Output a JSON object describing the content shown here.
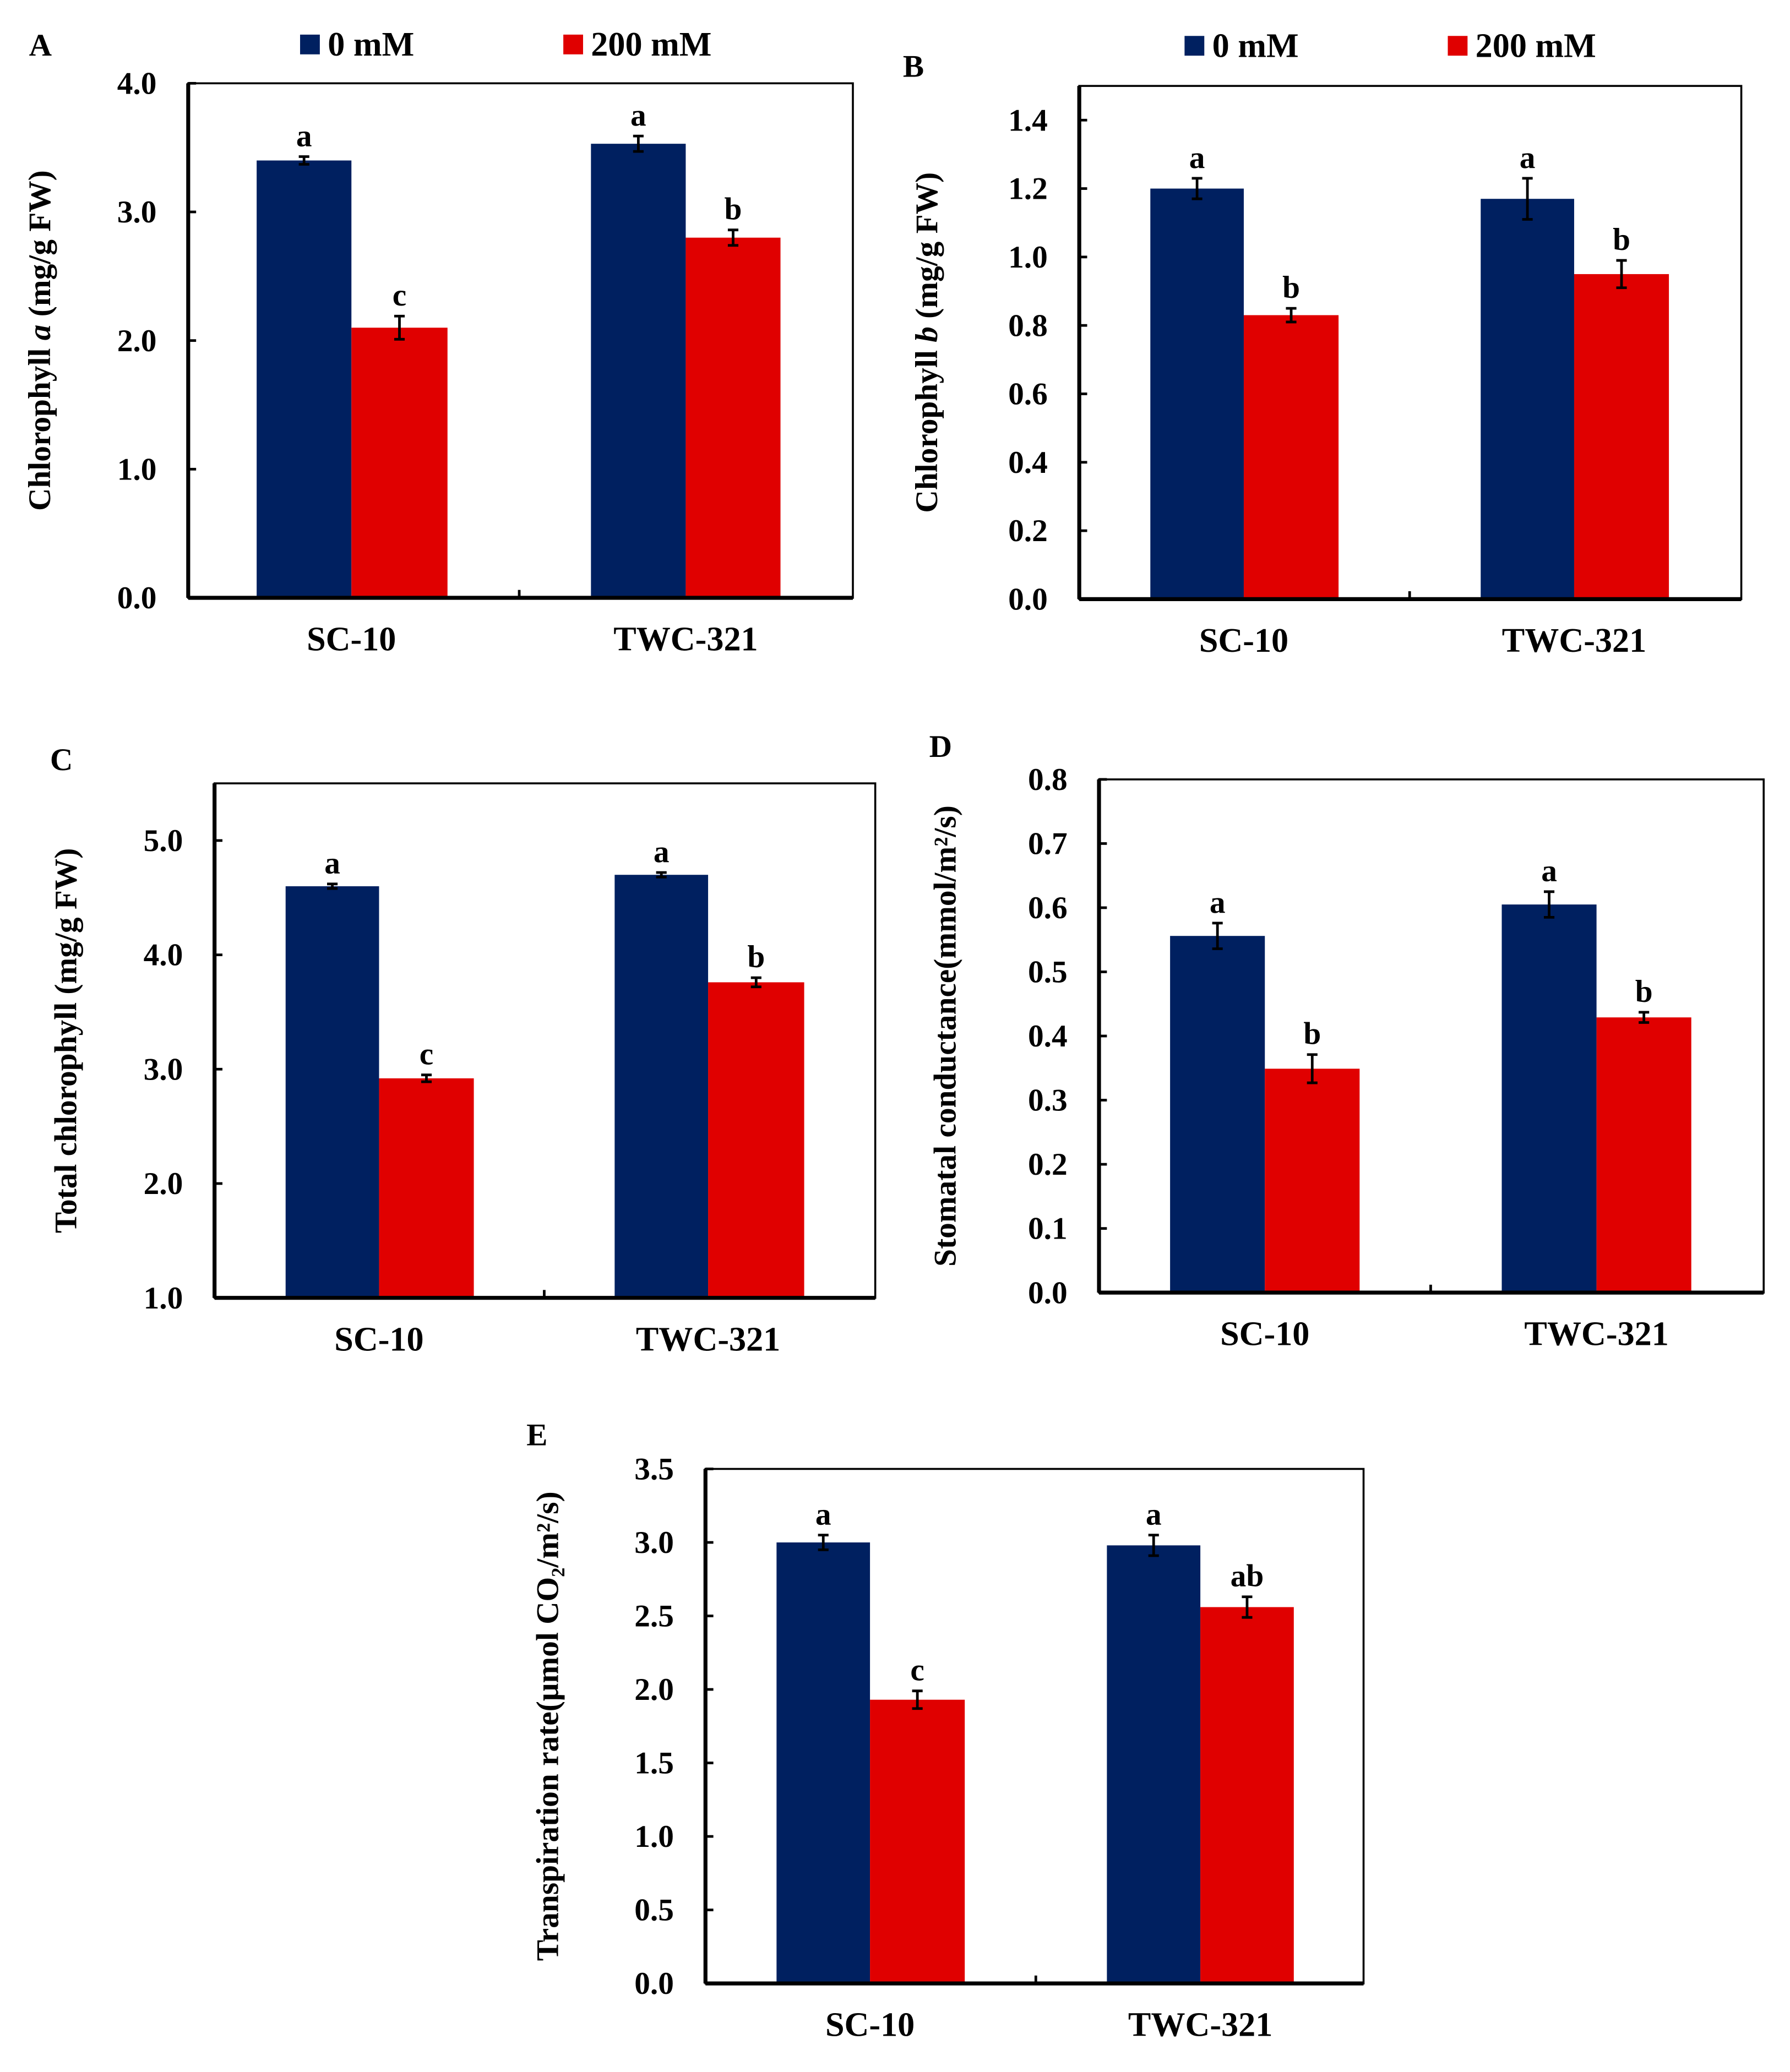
{
  "colors": {
    "control": "#002060",
    "salt": "#e00000"
  },
  "legend": [
    "0 mM",
    "200 mM"
  ],
  "chart_data": [
    {
      "panel": "A",
      "type": "bar",
      "categories": [
        "SC-10",
        "TWC-321"
      ],
      "ylabel": [
        {
          "t": "Chlorophyll "
        },
        {
          "t": "a",
          "i": true
        },
        {
          "t": " (mg/g FW)"
        }
      ],
      "ylim": [
        0,
        4.0
      ],
      "ystep": 1.0,
      "yticks": [
        "0.0",
        "1.0",
        "2.0",
        "3.0",
        "4.0"
      ],
      "series": [
        {
          "name": "0 mM",
          "values": [
            3.4,
            3.53
          ],
          "errors": [
            0.03,
            0.06
          ],
          "letters": [
            "a",
            "a"
          ]
        },
        {
          "name": "200 mM",
          "values": [
            2.1,
            2.8
          ],
          "errors": [
            0.09,
            0.06
          ],
          "letters": [
            "c",
            "b"
          ]
        }
      ],
      "legend_shown": true
    },
    {
      "panel": "B",
      "type": "bar",
      "categories": [
        "SC-10",
        "TWC-321"
      ],
      "ylabel": [
        {
          "t": "Chlorophyll "
        },
        {
          "t": "b",
          "i": true
        },
        {
          "t": " (mg/g FW)"
        }
      ],
      "ylim": [
        0,
        1.5
      ],
      "ystep": 0.2,
      "yticks": [
        "0.0",
        "0.2",
        "0.4",
        "0.6",
        "0.8",
        "1.0",
        "1.2",
        "1.4"
      ],
      "series": [
        {
          "name": "0 mM",
          "values": [
            1.2,
            1.17
          ],
          "errors": [
            0.03,
            0.06
          ],
          "letters": [
            "a",
            "a"
          ]
        },
        {
          "name": "200 mM",
          "values": [
            0.83,
            0.95
          ],
          "errors": [
            0.02,
            0.04
          ],
          "letters": [
            "b",
            "b"
          ]
        }
      ],
      "legend_shown": true
    },
    {
      "panel": "C",
      "type": "bar",
      "categories": [
        "SC-10",
        "TWC-321"
      ],
      "ylabel": [
        {
          "t": "Total chlorophyll (mg/g FW)"
        }
      ],
      "ylim": [
        1.0,
        5.5
      ],
      "ystep": 1.0,
      "yticks": [
        "1.0",
        "2.0",
        "3.0",
        "4.0",
        "5.0"
      ],
      "series": [
        {
          "name": "0 mM",
          "values": [
            4.6,
            4.7
          ],
          "errors": [
            0.02,
            0.02
          ],
          "letters": [
            "a",
            "a"
          ]
        },
        {
          "name": "200 mM",
          "values": [
            2.92,
            3.76
          ],
          "errors": [
            0.03,
            0.04
          ],
          "letters": [
            "c",
            "b"
          ]
        }
      ]
    },
    {
      "panel": "D",
      "type": "bar",
      "categories": [
        "SC-10",
        "TWC-321"
      ],
      "ylabel": [
        {
          "t": "Stomatal conductance(mmol/m²/s)"
        }
      ],
      "ylim": [
        0,
        0.8
      ],
      "ystep": 0.1,
      "yticks": [
        "0.0",
        "0.1",
        "0.2",
        "0.3",
        "0.4",
        "0.5",
        "0.6",
        "0.7",
        "0.8"
      ],
      "series": [
        {
          "name": "0 mM",
          "values": [
            0.556,
            0.605
          ],
          "errors": [
            0.02,
            0.02
          ],
          "letters": [
            "a",
            "a"
          ]
        },
        {
          "name": "200 mM",
          "values": [
            0.349,
            0.429
          ],
          "errors": [
            0.022,
            0.008
          ],
          "letters": [
            "b",
            "b"
          ]
        }
      ]
    },
    {
      "panel": "E",
      "type": "bar",
      "categories": [
        "SC-10",
        "TWC-321"
      ],
      "ylabel": [
        {
          "t": "Transpiration  rate(μmol CO₂/m²/s)"
        }
      ],
      "ylim": [
        0,
        3.5
      ],
      "ystep": 0.5,
      "yticks": [
        "0.0",
        "0.5",
        "1.0",
        "1.5",
        "2.0",
        "2.5",
        "3.0",
        "3.5"
      ],
      "series": [
        {
          "name": "0 mM",
          "values": [
            3.0,
            2.98
          ],
          "errors": [
            0.05,
            0.07
          ],
          "letters": [
            "a",
            "a"
          ]
        },
        {
          "name": "200 mM",
          "values": [
            1.93,
            2.56
          ],
          "errors": [
            0.06,
            0.07
          ],
          "letters": [
            "c",
            "ab"
          ]
        }
      ]
    }
  ]
}
